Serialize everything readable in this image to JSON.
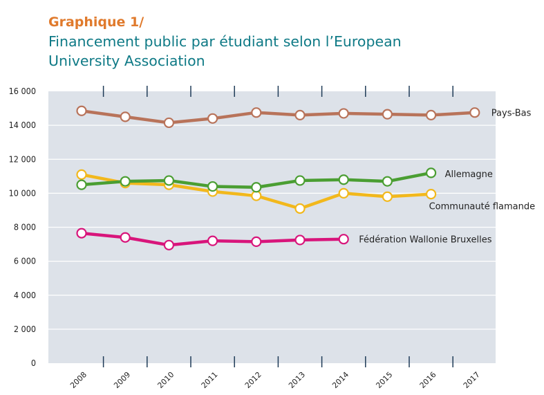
{
  "header": {
    "kicker": "Graphique 1/",
    "title": "Financement public par étudiant selon l’European University Association"
  },
  "colors": {
    "plot_bg": "#dde2e9",
    "grid": "#ffffff",
    "pays_bas": "#b8735a",
    "allemagne": "#4a9e32",
    "flamande": "#f2b81c",
    "fwb": "#d8157b"
  },
  "chart_data": {
    "type": "line",
    "x": [
      "2008",
      "2009",
      "2010",
      "2011",
      "2012",
      "2013",
      "2014",
      "2015",
      "2016",
      "2017"
    ],
    "ylim": [
      0,
      16000
    ],
    "yticks": [
      {
        "value": 0,
        "label": "0"
      },
      {
        "value": 2000,
        "label": "2 000"
      },
      {
        "value": 4000,
        "label": "4 000"
      },
      {
        "value": 6000,
        "label": "6 000"
      },
      {
        "value": 8000,
        "label": "8 000"
      },
      {
        "value": 10000,
        "label": "10 000"
      },
      {
        "value": 12000,
        "label": "12 000"
      },
      {
        "value": 14000,
        "label": "14 000"
      },
      {
        "value": 16000,
        "label": "16 000"
      }
    ],
    "grid": true,
    "series": [
      {
        "key": "pays_bas",
        "name": "Pays-Bas",
        "color": "#b8735a",
        "values": [
          14850,
          14500,
          14150,
          14400,
          14750,
          14600,
          14700,
          14650,
          14600,
          14750
        ]
      },
      {
        "key": "allemagne",
        "name": "Allemagne",
        "color": "#4a9e32",
        "values": [
          10500,
          10700,
          10750,
          10400,
          10350,
          10750,
          10800,
          10700,
          11200,
          null
        ]
      },
      {
        "key": "flamande",
        "name": "Communauté flamande",
        "color": "#f2b81c",
        "values": [
          11100,
          10600,
          10500,
          10100,
          9850,
          9100,
          10000,
          9800,
          9950,
          null
        ]
      },
      {
        "key": "fwb",
        "name": "Fédération Wallonie Bruxelles",
        "color": "#d8157b",
        "values": [
          7650,
          7400,
          6950,
          7200,
          7150,
          7250,
          7300,
          null,
          null,
          null
        ]
      }
    ]
  }
}
